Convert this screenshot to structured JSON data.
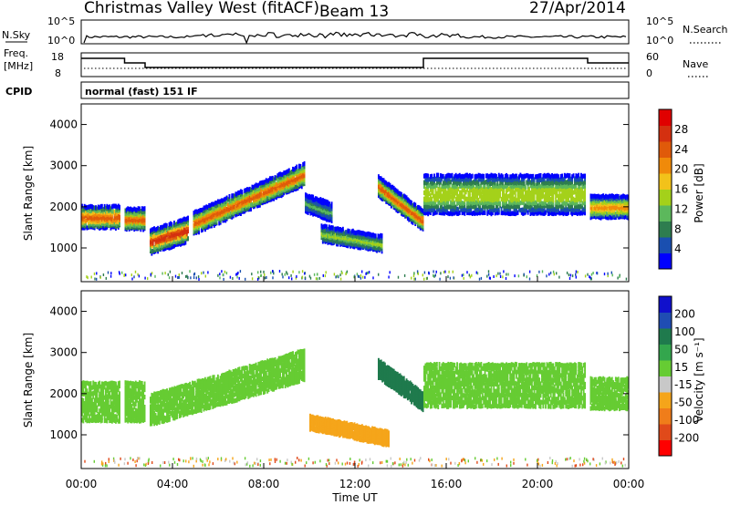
{
  "header": {
    "radar": "Christmas Valley West (fitACF)",
    "beam": "Beam 13",
    "date": "27/Apr/2014"
  },
  "nsky_panel": {
    "label": "N.Sky",
    "left_ticks": [
      "10^5",
      "10^0"
    ],
    "right_ticks": [
      "10^5",
      "10^0"
    ],
    "right_label": "N.Search"
  },
  "freq_panel": {
    "label_line1": "Freq.",
    "label_line2": "[MHz]",
    "left_ticks": [
      "18",
      "8"
    ],
    "right_ticks": [
      "60",
      "0"
    ],
    "right_label": "Nave"
  },
  "cpid_panel": {
    "label": "CPID",
    "value": "normal (fast) 151 IF"
  },
  "x_axis": {
    "ticks": [
      "00:00",
      "04:00",
      "08:00",
      "12:00",
      "16:00",
      "20:00",
      "00:00"
    ],
    "label": "Time UT"
  },
  "power_panel": {
    "ylabel": "Slant Range [km]",
    "yticks": [
      "4000",
      "3000",
      "2000",
      "1000"
    ],
    "colorbar_label": "Power [dB]",
    "colorbar_ticks": [
      "28",
      "24",
      "20",
      "16",
      "12",
      "8",
      "4"
    ]
  },
  "velocity_panel": {
    "ylabel": "Slant Range [km]",
    "yticks": [
      "4000",
      "3000",
      "2000",
      "1000"
    ],
    "colorbar_label": "Velocity [m s⁻¹]",
    "colorbar_ticks": [
      "200",
      "100",
      "50",
      "15",
      "-15",
      "-50",
      "-100",
      "-200"
    ]
  },
  "chart_data": [
    {
      "type": "heatmap",
      "quantity": "power",
      "xlim": [
        0,
        24
      ],
      "ylim": [
        180,
        4500
      ],
      "x_units": "hours UT",
      "colorbar": {
        "ticks": [
          4,
          8,
          12,
          16,
          20,
          24,
          28
        ],
        "colors": [
          "#0000ff",
          "#1a4fb0",
          "#2e7d4f",
          "#5cb85c",
          "#a4d11a",
          "#f2c21a",
          "#f08a0a",
          "#e05a0a",
          "#d43010",
          "#e00000"
        ]
      },
      "echo_bands": [
        {
          "t0": 0.0,
          "t1": 1.7,
          "r_start": 1750,
          "r_end": 1750,
          "width": 500,
          "peak": 26
        },
        {
          "t0": 1.9,
          "t1": 2.8,
          "r_start": 1700,
          "r_end": 1700,
          "width": 480,
          "peak": 25
        },
        {
          "t0": 3.0,
          "t1": 4.7,
          "r_start": 1150,
          "r_end": 1450,
          "width": 550,
          "peak": 28
        },
        {
          "t0": 4.9,
          "t1": 9.8,
          "r_start": 1600,
          "r_end": 2800,
          "width": 500,
          "peak": 24
        },
        {
          "t0": 9.8,
          "t1": 11.0,
          "r_start": 2100,
          "r_end": 1850,
          "width": 400,
          "peak": 10
        },
        {
          "t0": 10.5,
          "t1": 13.2,
          "r_start": 1350,
          "r_end": 1100,
          "width": 350,
          "peak": 15
        },
        {
          "t0": 13.0,
          "t1": 15.0,
          "r_start": 2500,
          "r_end": 1650,
          "width": 450,
          "peak": 24
        },
        {
          "t0": 15.0,
          "t1": 22.1,
          "r_start": 2300,
          "r_end": 2300,
          "width": 900,
          "peak": 16
        },
        {
          "t0": 22.3,
          "t1": 24.0,
          "r_start": 2000,
          "r_end": 2000,
          "width": 500,
          "peak": 22
        }
      ]
    },
    {
      "type": "heatmap",
      "quantity": "velocity",
      "xlim": [
        0,
        24
      ],
      "ylim": [
        180,
        4500
      ],
      "x_units": "hours UT",
      "colorbar": {
        "ticks": [
          -200,
          -100,
          -50,
          -15,
          15,
          50,
          100,
          200
        ],
        "colors": [
          "#ff0000",
          "#e04a1a",
          "#f07d1a",
          "#f5a51a",
          "#c8c8c8",
          "#66cc33",
          "#33a64d",
          "#1f7a4d",
          "#1f4db3",
          "#1010cc"
        ]
      },
      "echo_bands": [
        {
          "t0": 0.0,
          "t1": 1.7,
          "r_start": 1800,
          "r_end": 1800,
          "width": 900,
          "velocity": 0
        },
        {
          "t0": 1.9,
          "t1": 2.8,
          "r_start": 1800,
          "r_end": 1800,
          "width": 900,
          "velocity": 0
        },
        {
          "t0": 3.0,
          "t1": 9.8,
          "r_start": 1600,
          "r_end": 2700,
          "width": 700,
          "velocity": 0
        },
        {
          "t0": 10.0,
          "t1": 13.5,
          "r_start": 1300,
          "r_end": 900,
          "width": 300,
          "velocity": -80
        },
        {
          "t0": 13.0,
          "t1": 15.0,
          "r_start": 2600,
          "r_end": 1800,
          "width": 400,
          "velocity": 60
        },
        {
          "t0": 15.0,
          "t1": 22.1,
          "r_start": 2200,
          "r_end": 2200,
          "width": 1000,
          "velocity": 0
        },
        {
          "t0": 22.3,
          "t1": 24.0,
          "r_start": 2000,
          "r_end": 2000,
          "width": 700,
          "velocity": 0
        }
      ]
    }
  ]
}
